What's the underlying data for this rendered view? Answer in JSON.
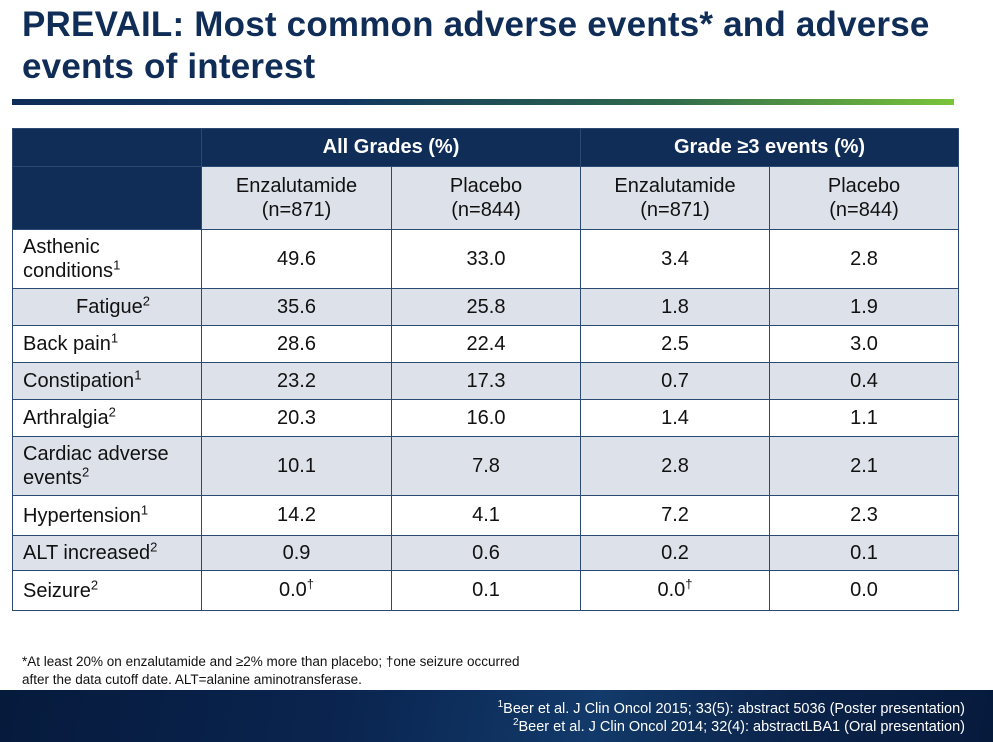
{
  "title": "PREVAIL: Most common adverse events* and adverse events of interest",
  "table": {
    "group_headers": [
      "All Grades (%)",
      "Grade ≥3 events (%)"
    ],
    "columns": [
      {
        "name": "Enzalutamide",
        "n": "(n=871)"
      },
      {
        "name": "Placebo",
        "n": "(n=844)"
      },
      {
        "name": "Enzalutamide",
        "n": "(n=871)"
      },
      {
        "name": "Placebo",
        "n": "(n=844)"
      }
    ],
    "rows": [
      {
        "label": "Asthenic conditions",
        "sup": "1",
        "values": [
          "49.6",
          "33.0",
          "3.4",
          "2.8"
        ],
        "marks": [
          "",
          "",
          "",
          ""
        ]
      },
      {
        "label": "Fatigue",
        "sup": "2",
        "values": [
          "35.6",
          "25.8",
          "1.8",
          "1.9"
        ],
        "marks": [
          "",
          "",
          "",
          ""
        ]
      },
      {
        "label": "Back pain",
        "sup": "1",
        "values": [
          "28.6",
          "22.4",
          "2.5",
          "3.0"
        ],
        "marks": [
          "",
          "",
          "",
          ""
        ]
      },
      {
        "label": "Constipation",
        "sup": "1",
        "values": [
          "23.2",
          "17.3",
          "0.7",
          "0.4"
        ],
        "marks": [
          "",
          "",
          "",
          ""
        ]
      },
      {
        "label": "Arthralgia",
        "sup": "2",
        "values": [
          "20.3",
          "16.0",
          "1.4",
          "1.1"
        ],
        "marks": [
          "",
          "",
          "",
          ""
        ]
      },
      {
        "label": "Cardiac adverse events",
        "sup": "2",
        "values": [
          "10.1",
          "7.8",
          "2.8",
          "2.1"
        ],
        "marks": [
          "",
          "",
          "",
          ""
        ]
      },
      {
        "label": "Hypertension",
        "sup": "1",
        "values": [
          "14.2",
          "4.1",
          "7.2",
          "2.3"
        ],
        "marks": [
          "",
          "",
          "",
          ""
        ]
      },
      {
        "label": "ALT increased",
        "sup": "2",
        "values": [
          "0.9",
          "0.6",
          "0.2",
          "0.1"
        ],
        "marks": [
          "",
          "",
          "",
          ""
        ]
      },
      {
        "label": "Seizure",
        "sup": "2",
        "values": [
          "0.0",
          "0.1",
          "0.0",
          "0.0"
        ],
        "marks": [
          "†",
          "",
          "†",
          ""
        ]
      }
    ]
  },
  "footnote": {
    "line1": "*At least 20% on enzalutamide and ≥2% more than placebo; †one seizure occurred",
    "line2": "after the data cutoff date. ALT=alanine aminotransferase."
  },
  "references": [
    {
      "num": "1",
      "text": "Beer et al. J Clin Oncol 2015; 33(5): abstract 5036 (Poster presentation)"
    },
    {
      "num": "2",
      "text": "Beer et al. J Clin Oncol 2014; 32(4): abstractLBA1 (Oral presentation)"
    }
  ],
  "colors": {
    "navy": "#0f2d57",
    "row_shade": "#dde1e9",
    "accent_green": "#7ac43a"
  }
}
